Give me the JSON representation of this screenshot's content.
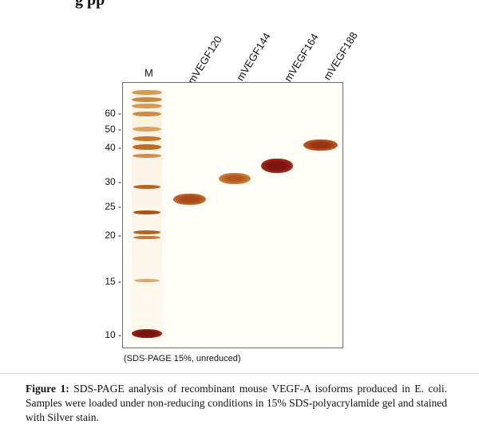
{
  "page": {
    "top_heading_fragment": "g  pp"
  },
  "gel": {
    "marker_lane_label": "M",
    "sample_lanes": [
      "mVEGF120",
      "mVEGF144",
      "mVEGF164",
      "mVEGF188"
    ],
    "mw_markers": [
      "60 -",
      "50 -",
      "40 -",
      "30 -",
      "25 -",
      "20 -",
      "15 -",
      "10 -"
    ],
    "conditions_note": "(SDS-PAGE 15%, unreduced)",
    "colors": {
      "band_dark": "#8b1a12",
      "band_mid": "#b5531c",
      "band_light": "#d98b3a",
      "ladder": "#c8762c"
    }
  },
  "caption": {
    "label": "Figure 1:",
    "text": " SDS-PAGE analysis of recombinant mouse VEGF-A isoforms produced in E. coli. Samples were loaded under non-reducing conditions in 15% SDS-polyacrylamide gel and stained with Silver stain."
  }
}
